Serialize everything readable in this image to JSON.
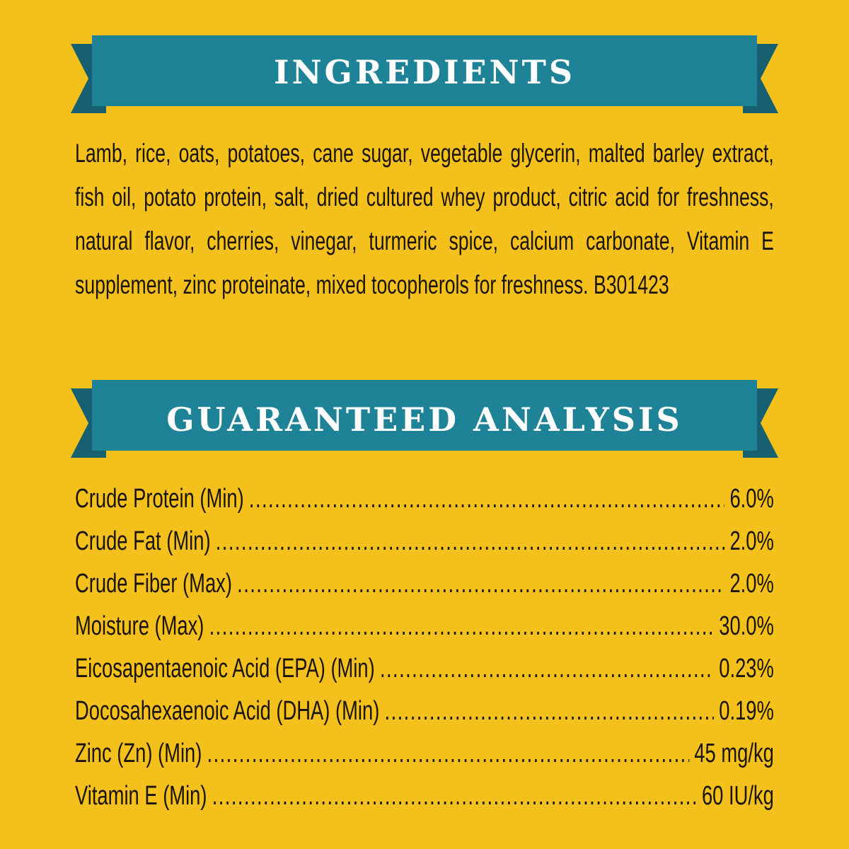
{
  "ingredients": {
    "title": "INGREDIENTS",
    "text": "Lamb, rice, oats, potatoes, cane sugar, vegetable glycerin, malted barley extract, fish oil, potato protein, salt, dried cultured whey product, citric acid for freshness, natural flavor, cherries, vinegar, turmeric spice, calcium carbonate, Vitamin E supplement, zinc proteinate, mixed tocopherols for freshness.  B301423"
  },
  "analysis": {
    "title": "GUARANTEED ANALYSIS",
    "rows": [
      [
        "Crude Protein (Min)",
        "6.0%"
      ],
      [
        "Crude Fat (Min)",
        "2.0%"
      ],
      [
        "Crude Fiber (Max)",
        "2.0%"
      ],
      [
        "Moisture (Max)",
        "30.0%"
      ],
      [
        "Eicosapentaenoic Acid (EPA) (Min)",
        "0.23%"
      ],
      [
        "Docosahexaenoic Acid (DHA) (Min)",
        "0.19%"
      ],
      [
        "Zinc (Zn) (Min)",
        "45 mg/kg"
      ],
      [
        "Vitamin E (Min)",
        "60 IU/kg"
      ]
    ]
  }
}
